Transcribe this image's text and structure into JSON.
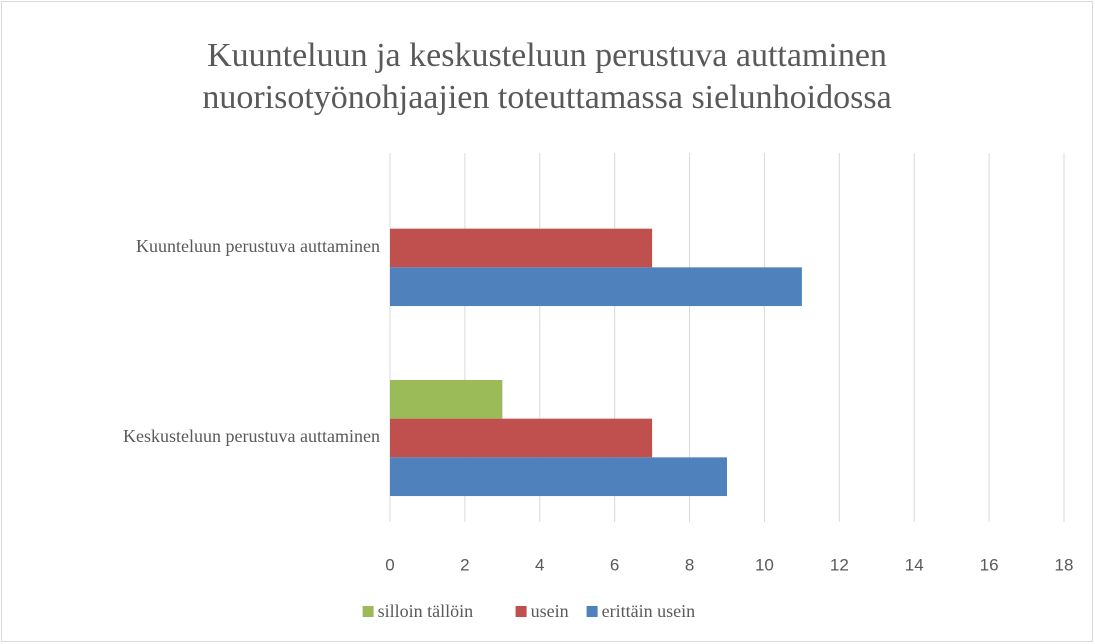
{
  "chart_data": {
    "type": "bar",
    "orientation": "horizontal",
    "title": "Kuunteluun ja keskusteluun perustuva auttaminen",
    "subtitle": "nuorisotyönohjaajien toteuttamassa sielunhoidossa",
    "categories": [
      "Kuunteluun perustuva auttaminen",
      "Keskusteluun perustuva auttaminen"
    ],
    "series": [
      {
        "name": "silloin tällöin",
        "color": "#9bbb59",
        "values": [
          0,
          3
        ]
      },
      {
        "name": "usein",
        "color": "#c0504d",
        "values": [
          7,
          7
        ]
      },
      {
        "name": "erittäin usein",
        "color": "#4f81bd",
        "values": [
          11,
          9
        ]
      }
    ],
    "xlim": [
      0,
      18
    ],
    "xticks": [
      0,
      2,
      4,
      6,
      8,
      10,
      12,
      14,
      16,
      18
    ],
    "grid": true,
    "legend": "bottom"
  }
}
